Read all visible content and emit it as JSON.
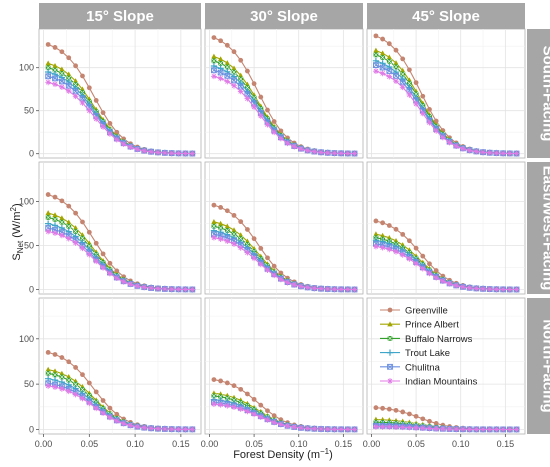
{
  "chart_data": {
    "type": "line",
    "facet_columns": [
      "15° Slope",
      "30° Slope",
      "45° Slope"
    ],
    "facet_rows": [
      "South-Facing",
      "East/West-Facing",
      "North-Facing"
    ],
    "xlabel": "Forest Density (m",
    "xlabel_superscript": "−1",
    "xlabel_suffix": ")",
    "ylabel_main": "S",
    "ylabel_sub": "Net",
    "ylabel_units": " (W/m",
    "ylabel_sup": "2",
    "ylabel_end": ")",
    "x_ticks": [
      "0.00",
      "0.05",
      "0.10",
      "0.15"
    ],
    "y_ticks": [
      "0",
      "50",
      "100"
    ],
    "xlim": [
      -0.005,
      0.172
    ],
    "ylim": [
      -5,
      145
    ],
    "x_values": [
      0.005,
      0.0125,
      0.02,
      0.0275,
      0.035,
      0.0425,
      0.05,
      0.0575,
      0.065,
      0.0725,
      0.08,
      0.0875,
      0.095,
      0.1025,
      0.11,
      0.1175,
      0.125,
      0.1325,
      0.14,
      0.1475,
      0.155,
      0.1625
    ],
    "grid": true,
    "legend_position": "inside bottom-right panel",
    "series": [
      {
        "name": "Greenville",
        "color": "#c4846f",
        "marker": "circle"
      },
      {
        "name": "Prince Albert",
        "color": "#a3a500",
        "marker": "triangle"
      },
      {
        "name": "Buffalo Narrows",
        "color": "#33a02c",
        "marker": "square-x"
      },
      {
        "name": "Trout Lake",
        "color": "#3fa5c9",
        "marker": "plus"
      },
      {
        "name": "Chulitna",
        "color": "#6b8fe0",
        "marker": "square-cross"
      },
      {
        "name": "Indian Mountains",
        "color": "#e07ae6",
        "marker": "asterisk"
      }
    ],
    "curve_shape": {
      "x_half": 0.055,
      "steepness": 0.017
    },
    "panel_start_values": [
      [
        [
          127,
          105,
          100,
          95,
          90,
          83
        ],
        [
          135,
          113,
          108,
          102,
          97,
          90
        ],
        [
          137,
          120,
          115,
          108,
          103,
          96
        ]
      ],
      [
        [
          108,
          87,
          82,
          75,
          70,
          66
        ],
        [
          96,
          77,
          72,
          67,
          63,
          59
        ],
        [
          78,
          63,
          59,
          56,
          52,
          49
        ]
      ],
      [
        [
          85,
          66,
          62,
          56,
          51,
          48
        ],
        [
          55,
          40,
          37,
          33,
          30,
          28
        ],
        [
          24,
          11,
          8,
          6,
          4,
          3
        ]
      ]
    ]
  }
}
